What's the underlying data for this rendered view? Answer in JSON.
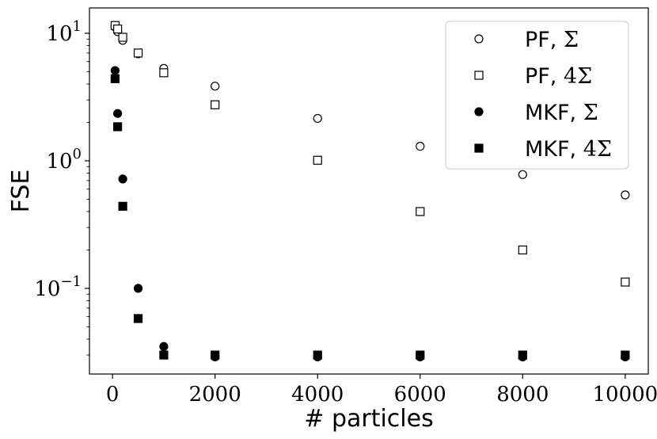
{
  "chart_data": {
    "type": "scatter",
    "xlabel": "# particles",
    "ylabel": "FSE",
    "xlim": [
      -450,
      10450
    ],
    "ylim": [
      0.0213,
      15.8
    ],
    "yscale": "log",
    "xticks": [
      {
        "value": 0,
        "label": "0"
      },
      {
        "value": 2000,
        "label": "2000"
      },
      {
        "value": 4000,
        "label": "4000"
      },
      {
        "value": 6000,
        "label": "6000"
      },
      {
        "value": 8000,
        "label": "8000"
      },
      {
        "value": 10000,
        "label": "10000"
      }
    ],
    "yticks": [
      {
        "value": 10,
        "base": "10",
        "exp": "1"
      },
      {
        "value": 1,
        "base": "10",
        "exp": "0"
      },
      {
        "value": 0.1,
        "base": "10",
        "exp": "−1"
      }
    ],
    "legend": {
      "placement": "top-right"
    },
    "series": [
      {
        "name": "PF, Σ",
        "name_text": "PF, ",
        "name_math": "Σ",
        "marker": "circle",
        "filled": false,
        "x": [
          50,
          100,
          200,
          500,
          1000,
          2000,
          4000,
          6000,
          8000,
          10000
        ],
        "y": [
          11.2,
          10.3,
          8.8,
          6.9,
          5.3,
          3.85,
          2.15,
          1.3,
          0.78,
          0.54
        ]
      },
      {
        "name": "PF, 4Σ",
        "name_text": "PF, ",
        "name_math": "4Σ",
        "marker": "square",
        "filled": false,
        "x": [
          50,
          100,
          200,
          500,
          1000,
          2000,
          4000,
          6000,
          8000,
          10000
        ],
        "y": [
          11.5,
          10.8,
          9.3,
          7.0,
          4.9,
          2.75,
          1.01,
          0.4,
          0.2,
          0.112
        ]
      },
      {
        "name": "MKF, Σ",
        "name_text": "MKF, ",
        "name_math": "Σ",
        "marker": "circle",
        "filled": true,
        "x": [
          50,
          100,
          200,
          500,
          1000,
          2000,
          4000,
          6000,
          8000,
          10000
        ],
        "y": [
          5.1,
          2.35,
          0.72,
          0.1,
          0.035,
          0.029,
          0.029,
          0.029,
          0.029,
          0.029
        ]
      },
      {
        "name": "MKF, 4Σ",
        "name_text": "MKF, ",
        "name_math": "4Σ",
        "marker": "square",
        "filled": true,
        "x": [
          50,
          100,
          200,
          500,
          1000,
          2000,
          4000,
          6000,
          8000,
          10000
        ],
        "y": [
          4.4,
          1.85,
          0.44,
          0.058,
          0.03,
          0.03,
          0.03,
          0.03,
          0.03,
          0.03
        ]
      }
    ]
  }
}
